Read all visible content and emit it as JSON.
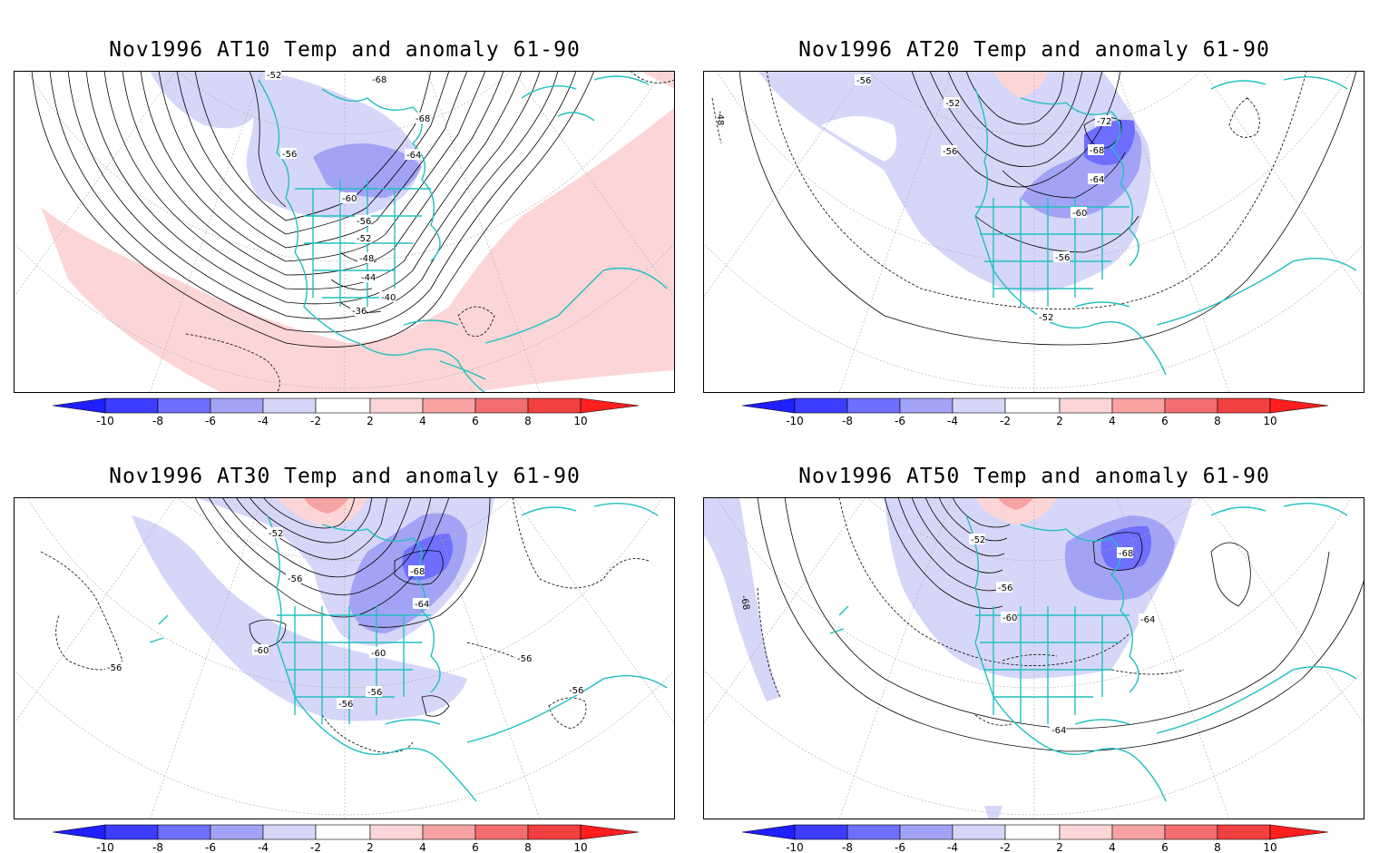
{
  "panels": [
    {
      "title": "Nov1996 AT10 Temp and anomaly 61-90",
      "contour_labels": [
        "-68",
        "-68",
        "-64",
        "-60",
        "-56",
        "-52",
        "-48",
        "-44",
        "-40",
        "-36",
        "-56",
        "-52"
      ]
    },
    {
      "title": "Nov1996 AT20 Temp and anomaly 61-90",
      "contour_labels": [
        "-56",
        "-52",
        "-56",
        "-72",
        "-68",
        "-64",
        "-60",
        "-56",
        "-52",
        "-48"
      ]
    },
    {
      "title": "Nov1996 AT30 Temp and anomaly 61-90",
      "contour_labels": [
        "-52",
        "-56",
        "-68",
        "-64",
        "-60",
        "-60",
        "-56",
        "-56",
        "-56",
        "-56",
        "-56"
      ]
    },
    {
      "title": "Nov1996 AT50 Temp and anomaly 61-90",
      "contour_labels": [
        "-52",
        "-68",
        "-56",
        "-60",
        "-64",
        "-64",
        "-68"
      ]
    }
  ],
  "colorbar": {
    "ticks": [
      "-10",
      "-8",
      "-6",
      "-4",
      "-2",
      "2",
      "4",
      "6",
      "8",
      "10"
    ],
    "colors": [
      "#1f1fff",
      "#3d3dff",
      "#6e6eff",
      "#a3a3f5",
      "#d6d6f8",
      "#ffffff",
      "#fcd6d6",
      "#f7a3a3",
      "#f26e6e",
      "#f24040",
      "#ff1f1f"
    ]
  },
  "colors": {
    "coastline": "#20c0c0",
    "contour": "#000000",
    "graticule": "#aaaaaa"
  }
}
